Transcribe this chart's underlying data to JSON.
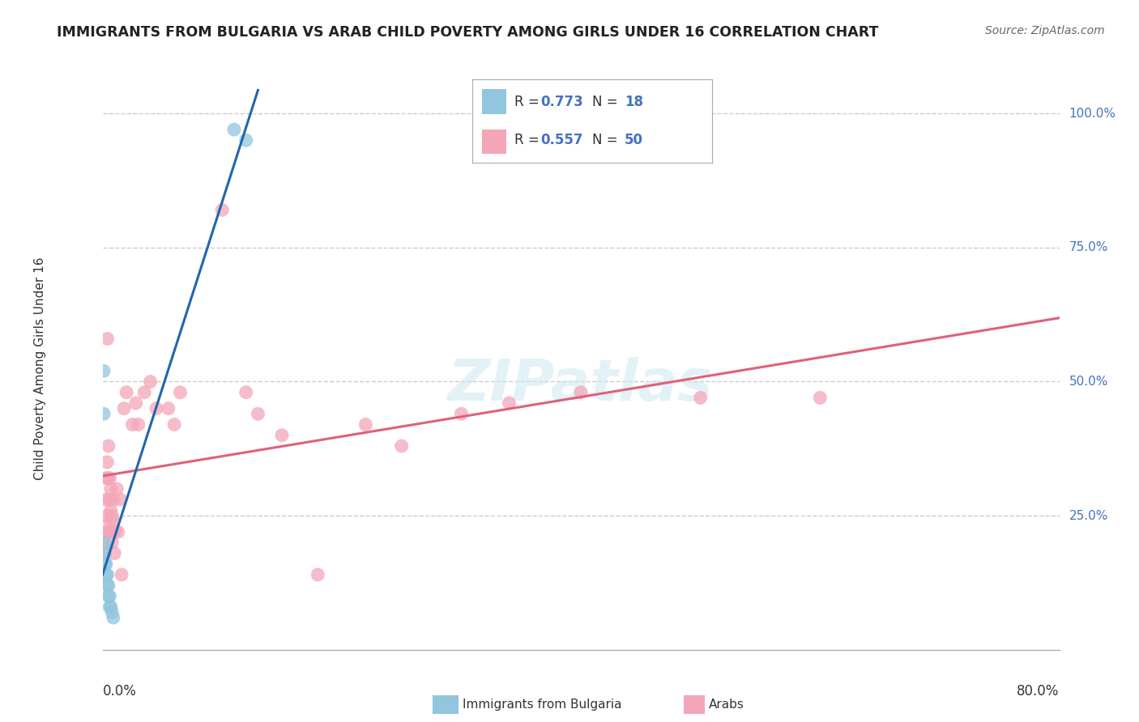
{
  "title": "IMMIGRANTS FROM BULGARIA VS ARAB CHILD POVERTY AMONG GIRLS UNDER 16 CORRELATION CHART",
  "source": "Source: ZipAtlas.com",
  "ylabel": "Child Poverty Among Girls Under 16",
  "color_bulgaria": "#92c5de",
  "color_arab": "#f4a6b8",
  "color_trendline_bulgaria": "#2166ac",
  "color_trendline_arab": "#e0607a",
  "xlim": [
    0.0,
    0.8
  ],
  "ylim": [
    0.0,
    1.05
  ],
  "ytick_positions": [
    0.25,
    0.5,
    0.75,
    1.0
  ],
  "ytick_labels": [
    "25.0%",
    "50.0%",
    "75.0%",
    "100.0%"
  ],
  "R_bulgaria": 0.773,
  "N_bulgaria": 18,
  "R_arab": 0.557,
  "N_arab": 50,
  "bulgaria_points_x": [
    0.001,
    0.001,
    0.002,
    0.002,
    0.002,
    0.003,
    0.003,
    0.004,
    0.004,
    0.005,
    0.005,
    0.006,
    0.006,
    0.007,
    0.008,
    0.009,
    0.11,
    0.12
  ],
  "bulgaria_points_y": [
    0.52,
    0.44,
    0.2,
    0.18,
    0.16,
    0.16,
    0.14,
    0.14,
    0.12,
    0.12,
    0.1,
    0.1,
    0.08,
    0.08,
    0.07,
    0.06,
    0.97,
    0.95
  ],
  "arab_points_x": [
    0.001,
    0.002,
    0.002,
    0.003,
    0.003,
    0.004,
    0.004,
    0.004,
    0.005,
    0.005,
    0.005,
    0.006,
    0.006,
    0.006,
    0.007,
    0.007,
    0.007,
    0.008,
    0.008,
    0.009,
    0.009,
    0.01,
    0.01,
    0.012,
    0.013,
    0.015,
    0.016,
    0.018,
    0.02,
    0.025,
    0.028,
    0.03,
    0.035,
    0.04,
    0.045,
    0.055,
    0.06,
    0.065,
    0.1,
    0.12,
    0.13,
    0.15,
    0.18,
    0.22,
    0.25,
    0.3,
    0.34,
    0.4,
    0.5,
    0.6
  ],
  "arab_points_y": [
    0.2,
    0.22,
    0.18,
    0.32,
    0.28,
    0.58,
    0.35,
    0.25,
    0.38,
    0.32,
    0.22,
    0.32,
    0.28,
    0.24,
    0.3,
    0.26,
    0.22,
    0.25,
    0.2,
    0.28,
    0.24,
    0.22,
    0.18,
    0.3,
    0.22,
    0.28,
    0.14,
    0.45,
    0.48,
    0.42,
    0.46,
    0.42,
    0.48,
    0.5,
    0.45,
    0.45,
    0.42,
    0.48,
    0.82,
    0.48,
    0.44,
    0.4,
    0.14,
    0.42,
    0.38,
    0.44,
    0.46,
    0.48,
    0.47,
    0.47
  ]
}
